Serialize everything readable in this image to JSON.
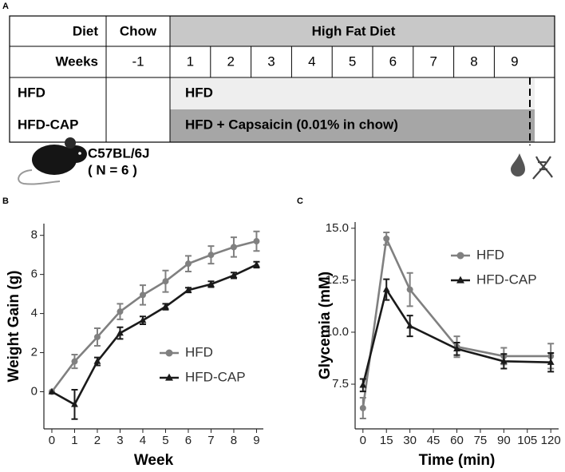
{
  "panel_labels": [
    "A",
    "B",
    "C"
  ],
  "panel_a": {
    "header": {
      "label": "Diet",
      "chow": "Chow",
      "hfd": "High Fat Diet"
    },
    "weeks_label": "Weeks",
    "weeks": [
      -1,
      1,
      2,
      3,
      4,
      5,
      6,
      7,
      8,
      9
    ],
    "groups": [
      {
        "name": "HFD",
        "treatment": "HFD"
      },
      {
        "name": "HFD-CAP",
        "treatment": "HFD + Capsaicin (0.01% in chow)"
      }
    ],
    "strain": "C57BL/6J",
    "n": "( N = 6 )"
  },
  "chart_data": [
    {
      "type": "line",
      "xlabel": "Week",
      "ylabel": "Weight Gain (g)",
      "x": [
        0,
        1,
        2,
        3,
        4,
        5,
        6,
        7,
        8,
        9
      ],
      "xlim": [
        -0.35,
        9.3
      ],
      "xticks": [
        0,
        1,
        2,
        3,
        4,
        5,
        6,
        7,
        8,
        9
      ],
      "ylim": [
        -1.9,
        8.6
      ],
      "yticks": [
        0,
        2,
        4,
        6,
        8
      ],
      "legend": "lower right",
      "series": [
        {
          "name": "HFD",
          "color": "#808080",
          "marker": "circle",
          "values": [
            0,
            1.55,
            2.8,
            4.1,
            4.95,
            5.65,
            6.55,
            7.0,
            7.4,
            7.7
          ],
          "errors": [
            0,
            0.35,
            0.45,
            0.4,
            0.5,
            0.55,
            0.4,
            0.45,
            0.5,
            0.5
          ]
        },
        {
          "name": "HFD-CAP",
          "color": "#1a1a1a",
          "marker": "triangle",
          "values": [
            0,
            -0.65,
            1.55,
            3.0,
            3.65,
            4.35,
            5.2,
            5.5,
            5.95,
            6.5
          ],
          "errors": [
            0,
            0.75,
            0.2,
            0.3,
            0.2,
            0.15,
            0.12,
            0.15,
            0.15,
            0.15
          ]
        }
      ]
    },
    {
      "type": "line",
      "xlabel": "Time (min)",
      "ylabel": "Glycemia (mM)",
      "x": [
        0,
        15,
        30,
        60,
        90,
        120
      ],
      "xlim": [
        -5,
        125
      ],
      "xticks": [
        0,
        15,
        30,
        45,
        60,
        75,
        90,
        105,
        120
      ],
      "ylim": [
        5.35,
        15.3
      ],
      "yticks": [
        7.5,
        {
          "value": 10,
          "label": "10.0"
        },
        12.5,
        {
          "value": 15,
          "label": "15.0"
        }
      ],
      "legend": "upper right",
      "series": [
        {
          "name": "HFD",
          "color": "#808080",
          "marker": "circle",
          "values": [
            6.35,
            14.5,
            12.05,
            9.3,
            8.85,
            8.85
          ],
          "errors": [
            0.5,
            0.3,
            0.8,
            0.5,
            0.4,
            0.6
          ]
        },
        {
          "name": "HFD-CAP",
          "color": "#1a1a1a",
          "marker": "triangle",
          "values": [
            7.45,
            12.05,
            10.3,
            9.2,
            8.6,
            8.55
          ],
          "errors": [
            0.3,
            0.5,
            0.5,
            0.3,
            0.35,
            0.45
          ]
        }
      ]
    }
  ]
}
